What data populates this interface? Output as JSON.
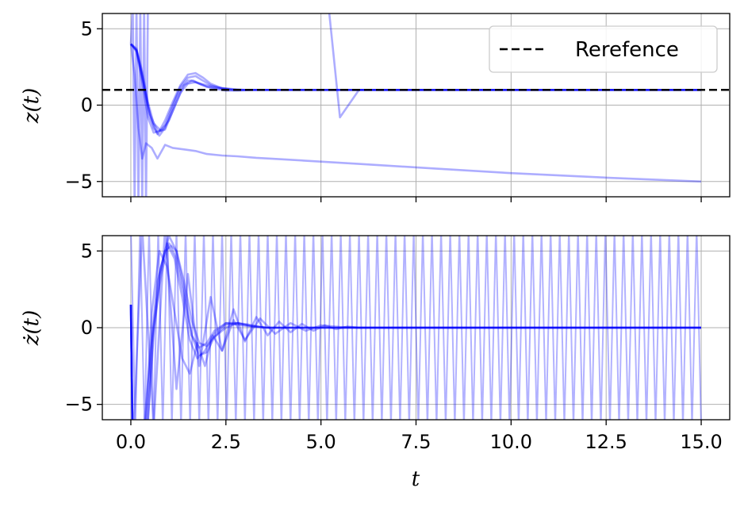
{
  "chart_data": [
    {
      "type": "line",
      "ylabel": "z(t)",
      "xlim": [
        -0.75,
        15.75
      ],
      "ylim": [
        -6,
        6
      ],
      "yticks": [
        -5,
        0,
        5
      ],
      "ytick_labels": [
        "−5",
        "0",
        "5"
      ],
      "xticks": [
        0,
        2.5,
        5,
        7.5,
        10,
        12.5,
        15
      ],
      "grid": true,
      "legend": {
        "position": "top-right",
        "entries": [
          {
            "label": "Rerefence",
            "style": "dashed",
            "color": "#000000"
          }
        ]
      },
      "reference": {
        "value": 1,
        "color": "#000000",
        "style": "dashed"
      },
      "series_color": "#0000ff",
      "series": [
        {
          "x": [
            0,
            0.15,
            0.3,
            0.45,
            0.6,
            0.75,
            0.9,
            1.05,
            1.2,
            1.35,
            1.5,
            1.65,
            1.8,
            2.0,
            2.25,
            2.5,
            2.8,
            3.2,
            3.7,
            4.2,
            5,
            6,
            8,
            10,
            12.5,
            15
          ],
          "y": [
            4,
            3.6,
            2.0,
            0.0,
            -1.5,
            -2.0,
            -1.5,
            -0.5,
            0.5,
            1.2,
            1.6,
            1.6,
            1.4,
            1.2,
            1.05,
            0.95,
            0.95,
            1.0,
            1.0,
            1.0,
            1.0,
            1.0,
            1.0,
            1.0,
            1.0,
            1.0
          ]
        },
        {
          "x": [
            0,
            0.15,
            0.3,
            0.45,
            0.6,
            0.75,
            0.9,
            1.1,
            1.3,
            1.5,
            1.7,
            1.9,
            2.1,
            2.4,
            2.7,
            3.0,
            3.5,
            4.0,
            5,
            6,
            8,
            10,
            12.5,
            15
          ],
          "y": [
            4,
            3.5,
            1.5,
            -0.8,
            -1.8,
            -1.7,
            -1.0,
            0.2,
            1.3,
            2.0,
            2.1,
            1.8,
            1.4,
            1.1,
            1.0,
            1.0,
            1.0,
            1.0,
            1.0,
            1.0,
            1.0,
            1.0,
            1.0,
            1.0
          ]
        },
        {
          "x": [
            0,
            0.15,
            0.3,
            0.45,
            0.6,
            0.8,
            1.0,
            1.2,
            1.4,
            1.6,
            1.8,
            2.0,
            2.3,
            2.6,
            3.0,
            3.5,
            4.0,
            5,
            6,
            8,
            10,
            12.5,
            15
          ],
          "y": [
            4,
            3.7,
            2.2,
            0.2,
            -1.2,
            -1.7,
            -1.0,
            0.2,
            1.3,
            1.6,
            1.4,
            1.2,
            1.1,
            1.0,
            1.0,
            1.0,
            1.0,
            1.0,
            1.0,
            1.0,
            1.0,
            1.0,
            1.0
          ]
        },
        {
          "x": [
            0,
            0.15,
            0.3,
            0.5,
            0.7,
            0.9,
            1.1,
            1.3,
            1.5,
            1.7,
            1.9,
            2.1,
            2.4,
            2.8,
            3.2,
            4,
            5,
            6,
            8,
            10,
            12.5,
            15
          ],
          "y": [
            4,
            3.6,
            1.8,
            -0.8,
            -1.9,
            -1.3,
            0.0,
            1.2,
            1.8,
            1.9,
            1.6,
            1.3,
            1.1,
            1.0,
            1.0,
            1.0,
            1.0,
            1.0,
            1.0,
            1.0,
            1.0,
            1.0
          ]
        },
        {
          "x": [
            0,
            0.15,
            0.3,
            0.5,
            0.7,
            0.9,
            1.1,
            1.3,
            1.5,
            1.7,
            2.0,
            2.3,
            2.7,
            3.0,
            3.5,
            4,
            5,
            6,
            8,
            10,
            12.5,
            15
          ],
          "y": [
            4,
            3.6,
            1.9,
            -0.6,
            -1.7,
            -1.6,
            -0.4,
            0.8,
            1.4,
            1.5,
            1.3,
            1.15,
            1.05,
            1.0,
            1.0,
            1.0,
            1.0,
            1.0,
            1.0,
            1.0,
            1.0,
            1.0
          ]
        },
        {
          "x": [
            0,
            0.1,
            0.2,
            0.3,
            0.4,
            0.55,
            0.7,
            0.9,
            1.1,
            1.4,
            1.7,
            2.0,
            2.4,
            2.8,
            3.3,
            4.0,
            6,
            8,
            10,
            12.5,
            15
          ],
          "y": [
            4,
            2.0,
            -1.5,
            -3.5,
            -2.5,
            -2.8,
            -3.5,
            -2.6,
            -2.8,
            -2.9,
            -3.0,
            -3.2,
            -3.3,
            -3.35,
            -3.45,
            -3.55,
            -3.85,
            -4.15,
            -4.45,
            -4.75,
            -5.0
          ]
        },
        {
          "x": [
            0,
            0.05,
            0.1,
            0.15,
            0.2,
            0.25,
            0.3,
            0.35,
            0.4,
            0.45,
            0.5,
            0.6,
            0.7,
            0.8,
            0.9,
            1.0,
            1.1,
            1.2,
            1.3,
            1.4,
            1.6,
            1.8,
            2.0,
            2.4,
            2.8,
            3.2,
            3.6,
            4.0,
            4.4,
            4.8,
            5.2,
            5.5,
            6,
            8,
            10,
            15
          ],
          "y": [
            4,
            6.5,
            -6.5,
            6.5,
            -6.5,
            6.5,
            -6.5,
            6.5,
            -6.5,
            6.5,
            6.5,
            6.5,
            6.5,
            6.5,
            6.5,
            6.5,
            6.5,
            6.5,
            6.5,
            6.5,
            6.5,
            6.5,
            6.5,
            6.5,
            6.5,
            6.5,
            6.5,
            6.5,
            6.5,
            6.5,
            6.5,
            -0.8,
            1.0,
            1.0,
            1.0,
            1.0
          ]
        }
      ]
    },
    {
      "type": "line",
      "xlabel": "t",
      "ylabel": "ż(t)",
      "xlim": [
        -0.75,
        15.75
      ],
      "ylim": [
        -6,
        6
      ],
      "yticks": [
        -5,
        0,
        5
      ],
      "ytick_labels": [
        "−5",
        "0",
        "5"
      ],
      "xticks": [
        0,
        2.5,
        5,
        7.5,
        10,
        12.5,
        15
      ],
      "xtick_labels": [
        "0.0",
        "2.5",
        "5.0",
        "7.5",
        "10.0",
        "12.5",
        "15.0"
      ],
      "grid": true,
      "series_color": "#0000ff",
      "series": [
        {
          "x": [
            0,
            0.05,
            0.3,
            0.5,
            0.7,
            0.9,
            1.05,
            1.2,
            1.4,
            1.6,
            1.8,
            2.0,
            2.2,
            2.5,
            2.8,
            3.2,
            3.6,
            4,
            5,
            6,
            8,
            10,
            12.5,
            15
          ],
          "y": [
            1.5,
            -8,
            -8,
            -2.0,
            3.0,
            5.0,
            5.3,
            4.5,
            2.0,
            -0.5,
            -1.3,
            -1.0,
            -0.2,
            0.3,
            0.2,
            0.05,
            0.0,
            0.0,
            0.0,
            0.0,
            0.0,
            0.0,
            0.0,
            0.0
          ]
        },
        {
          "x": [
            0,
            0.05,
            0.4,
            0.6,
            0.8,
            1.0,
            1.2,
            1.4,
            1.6,
            1.8,
            2.0,
            2.2,
            2.5,
            2.8,
            3.1,
            3.5,
            4,
            5,
            6,
            8,
            10,
            12.5,
            15
          ],
          "y": [
            1.5,
            -8,
            -8,
            0.0,
            3.5,
            5.5,
            5.0,
            3.0,
            0.5,
            -1.0,
            -1.2,
            -0.6,
            0.0,
            0.3,
            0.2,
            0.0,
            0.0,
            0.0,
            0.0,
            0.0,
            0.0,
            0.0,
            0.0
          ]
        },
        {
          "x": [
            0,
            0.05,
            0.35,
            0.55,
            0.75,
            0.95,
            1.15,
            1.35,
            1.55,
            1.75,
            1.95,
            2.2,
            2.5,
            2.8,
            3.2,
            3.6,
            4,
            5,
            6,
            8,
            10,
            12.5,
            15
          ],
          "y": [
            1.5,
            -8,
            -8,
            -1.0,
            3.5,
            5.5,
            4.5,
            2.0,
            -0.8,
            -2.0,
            -1.5,
            -0.4,
            0.3,
            0.3,
            0.1,
            0.0,
            0.0,
            0.0,
            0.0,
            0.0,
            0.0,
            0.0,
            0.0
          ]
        },
        {
          "x": [
            0,
            0.05,
            0.4,
            0.6,
            0.8,
            1.0,
            1.2,
            1.4,
            1.6,
            1.8,
            2.0,
            2.2,
            2.5,
            2.8,
            3.2,
            3.6,
            4,
            5,
            6,
            8,
            10,
            12.5,
            15
          ],
          "y": [
            1.5,
            -8,
            -8,
            -0.5,
            4.0,
            6.0,
            5.0,
            2.5,
            -0.5,
            -1.8,
            -1.6,
            -0.6,
            0.2,
            0.3,
            0.1,
            0.0,
            0.0,
            0.0,
            0.0,
            0.0,
            0.0,
            0.0,
            0.0
          ]
        },
        {
          "x": [
            0,
            0.05,
            0.35,
            0.55,
            0.75,
            0.95,
            1.15,
            1.35,
            1.55,
            1.75,
            1.95,
            2.15,
            2.4,
            2.7,
            3.0,
            3.4,
            3.8,
            4.2,
            4.6,
            5.0,
            5.5,
            6,
            8,
            10,
            12.5,
            15
          ],
          "y": [
            1.5,
            -8,
            -8,
            1.0,
            5.0,
            4.0,
            1.0,
            -2.0,
            -3.0,
            -1.0,
            -2.5,
            -0.5,
            -1.5,
            0.5,
            -0.8,
            0.6,
            -0.4,
            0.3,
            -0.2,
            0.15,
            0.05,
            0.0,
            0.0,
            0.0,
            0.0,
            0.0
          ]
        },
        {
          "x": [
            0,
            0.05,
            0.3,
            0.6,
            0.9,
            1.2,
            1.5,
            1.8,
            2.1,
            2.4,
            2.7,
            3.0,
            3.3,
            3.6,
            3.9,
            4.2,
            4.5,
            4.8,
            5.1,
            5.4,
            5.7,
            6.0,
            6.5,
            8,
            10,
            12.5,
            15
          ],
          "y": [
            1.5,
            -8,
            6.5,
            -6.5,
            6.5,
            -4.0,
            3.5,
            -2.5,
            2.0,
            -1.5,
            1.2,
            -0.9,
            0.7,
            -0.5,
            0.4,
            -0.3,
            0.25,
            -0.2,
            0.15,
            -0.1,
            0.08,
            0.0,
            0.0,
            0.0,
            0.0,
            0.0,
            0.0
          ]
        }
      ],
      "noise_series": {
        "t_start": 0.0,
        "t_end": 15.0,
        "step": 0.12,
        "amplitude": 6.5,
        "opacity": 0.3
      }
    }
  ]
}
